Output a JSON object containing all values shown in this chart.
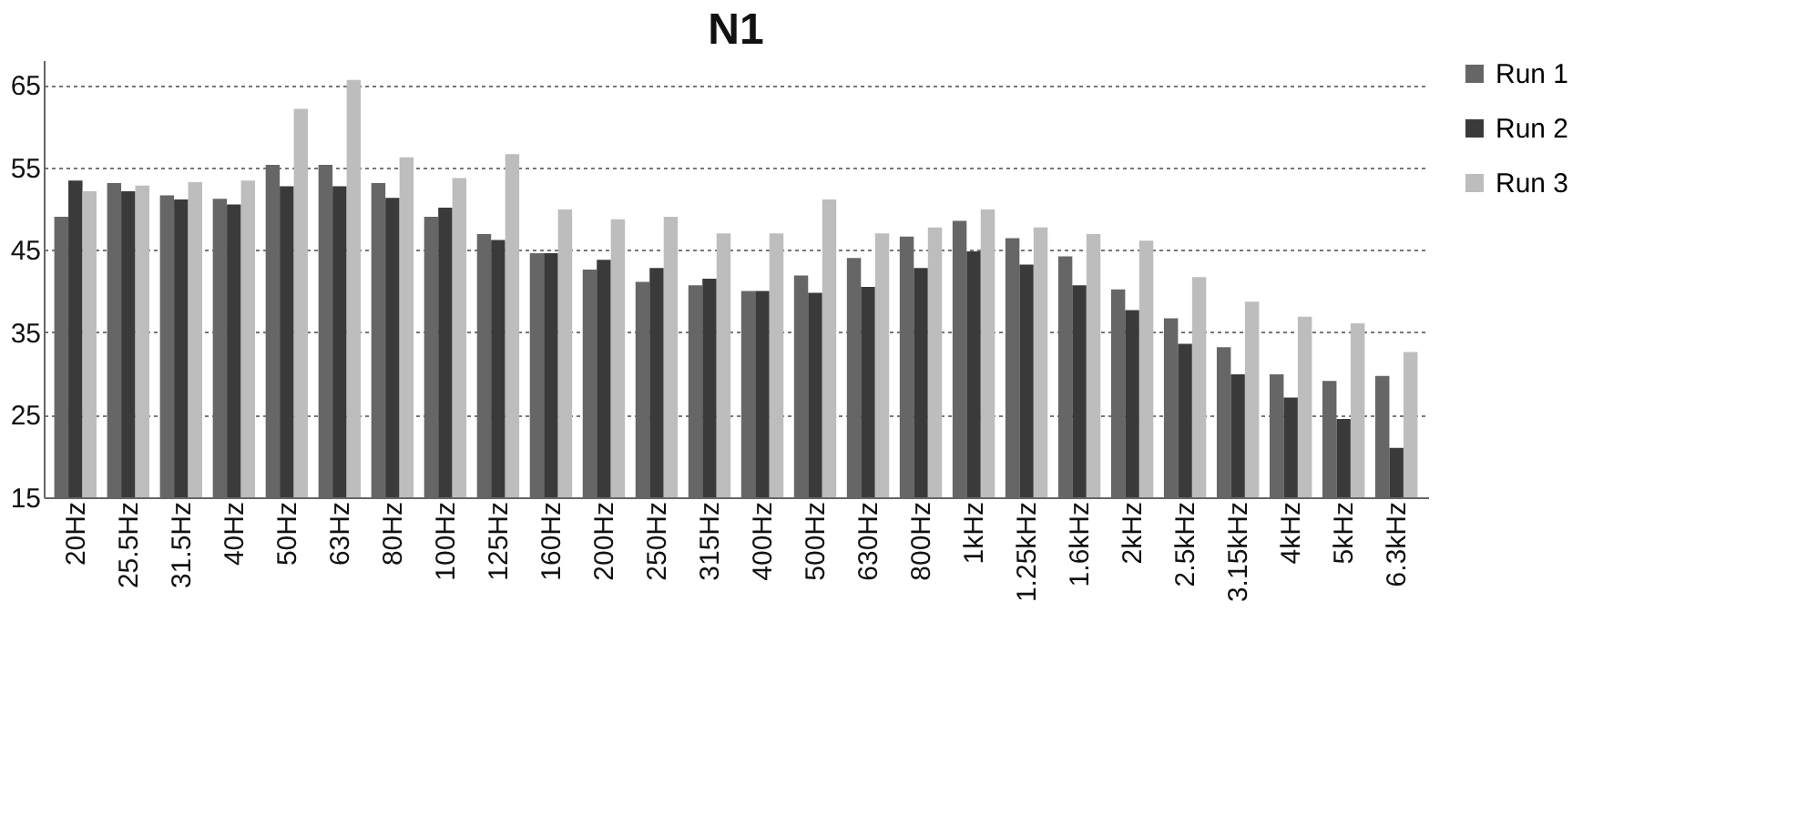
{
  "chart_data": {
    "type": "bar",
    "title": "N1",
    "categories": [
      "20Hz",
      "25.5Hz",
      "31.5Hz",
      "40Hz",
      "50Hz",
      "63Hz",
      "80Hz",
      "100Hz",
      "125Hz",
      "160Hz",
      "200Hz",
      "250Hz",
      "315Hz",
      "400Hz",
      "500Hz",
      "630Hz",
      "800Hz",
      "1kHz",
      "1.25kHz",
      "1.6kHz",
      "2kHz",
      "2.5kHz",
      "3.15kHz",
      "4kHz",
      "5kHz",
      "6.3kHz"
    ],
    "series": [
      {
        "name": "Run 1",
        "color": "#666666",
        "values": [
          49.0,
          53.1,
          51.6,
          51.2,
          55.3,
          55.3,
          53.1,
          49.0,
          46.9,
          44.6,
          42.6,
          41.1,
          40.7,
          40.0,
          41.9,
          44.0,
          46.6,
          48.5,
          46.4,
          44.2,
          40.2,
          36.7,
          33.2,
          29.9,
          29.1,
          29.7
        ]
      },
      {
        "name": "Run 2",
        "color": "#3a3a3a",
        "values": [
          53.4,
          52.1,
          51.1,
          50.5,
          52.7,
          52.7,
          51.3,
          50.1,
          46.2,
          44.6,
          43.8,
          42.8,
          41.5,
          40.0,
          39.8,
          40.5,
          42.8,
          44.8,
          43.2,
          40.7,
          37.7,
          33.6,
          29.9,
          27.1,
          24.5,
          21.0
        ]
      },
      {
        "name": "Run 3",
        "color": "#bdbdbd",
        "values": [
          52.1,
          52.8,
          53.2,
          53.4,
          62.1,
          65.6,
          56.2,
          53.7,
          56.6,
          49.9,
          48.7,
          49.0,
          47.0,
          47.0,
          51.1,
          47.0,
          47.7,
          49.9,
          47.7,
          46.9,
          46.1,
          41.7,
          38.7,
          36.9,
          36.1,
          32.6
        ]
      }
    ],
    "ylim": [
      15,
      68
    ],
    "yticks": [
      15,
      25,
      35,
      45,
      55,
      65
    ],
    "grid": "y",
    "legend": "right"
  }
}
